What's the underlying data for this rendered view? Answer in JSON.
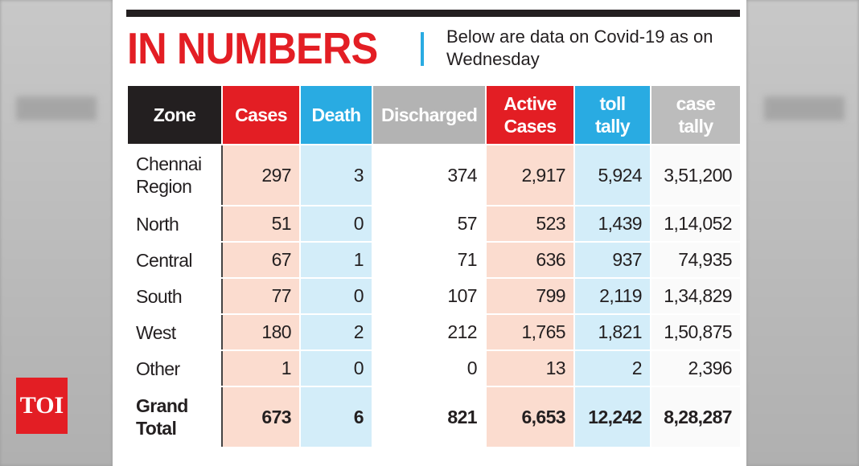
{
  "header": {
    "title": "IN NUMBERS",
    "subtitle": "Below are data on Covid-19 as on Wednesday"
  },
  "table": {
    "columns": [
      "Zone",
      "Cases",
      "Death",
      "Discharged",
      "Active Cases",
      "toll tally",
      "case tally"
    ],
    "rows": [
      [
        "Chennai Region",
        "297",
        "3",
        "374",
        "2,917",
        "5,924",
        "3,51,200"
      ],
      [
        "North",
        "51",
        "0",
        "57",
        "523",
        "1,439",
        "1,14,052"
      ],
      [
        "Central",
        "67",
        "1",
        "71",
        "636",
        "937",
        "74,935"
      ],
      [
        "South",
        "77",
        "0",
        "107",
        "799",
        "2,119",
        "1,34,829"
      ],
      [
        "West",
        "180",
        "2",
        "212",
        "1,765",
        "1,821",
        "1,50,875"
      ],
      [
        "Other",
        "1",
        "0",
        "0",
        "13",
        "2",
        "2,396"
      ],
      [
        "Grand Total",
        "673",
        "6",
        "821",
        "6,653",
        "12,242",
        "8,28,287"
      ]
    ]
  },
  "logo": "TOI"
}
